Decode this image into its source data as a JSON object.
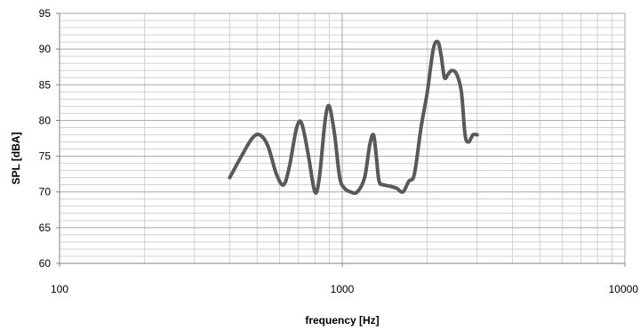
{
  "chart_data": {
    "type": "line",
    "title": "",
    "xlabel": "frequency [Hz]",
    "ylabel": "SPL [dBA]",
    "xscale": "log",
    "xlim": [
      100,
      10000
    ],
    "ylim": [
      60,
      95
    ],
    "x_ticks": [
      "100",
      "1000",
      "10000"
    ],
    "y_ticks": [
      "60",
      "65",
      "70",
      "75",
      "80",
      "85",
      "90",
      "95"
    ],
    "grid": true,
    "legend": "none",
    "colors": {
      "series": "#595959",
      "major_grid": "#a6a6a6",
      "minor_grid": "#d0d0d0",
      "axis": "#808080"
    },
    "series": [
      {
        "x": [
          400,
          440,
          480,
          510,
          545,
          585,
          620,
          650,
          690,
          720,
          760,
          800,
          830,
          870,
          900,
          940,
          980,
          1020,
          1070,
          1130,
          1200,
          1250,
          1290,
          1320,
          1350,
          1400,
          1480,
          1560,
          1640,
          1720,
          1800,
          1900,
          2000,
          2100,
          2180,
          2240,
          2300,
          2370,
          2440,
          2540,
          2640,
          2720,
          2800,
          2900,
          3000
        ],
        "y": [
          72,
          75,
          77.5,
          78,
          76.5,
          72.5,
          71,
          73.5,
          79,
          79.5,
          75,
          70,
          72,
          80,
          82,
          78,
          72,
          70.5,
          70,
          70,
          72,
          76.5,
          78,
          75,
          71.5,
          71,
          70.8,
          70.5,
          70,
          71.5,
          72.5,
          79,
          84,
          90,
          91,
          89,
          86,
          86.5,
          87,
          86.5,
          84,
          78,
          77,
          78,
          78
        ]
      }
    ]
  }
}
